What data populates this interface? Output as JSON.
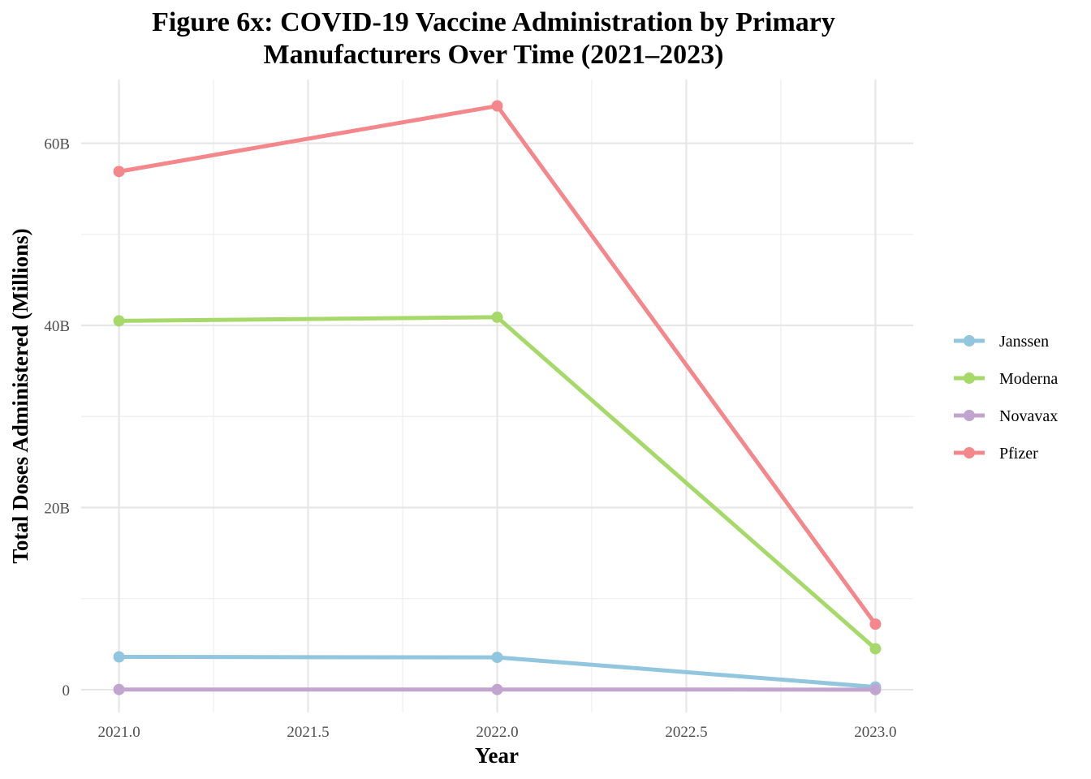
{
  "chart_data": {
    "type": "line",
    "title_lines": [
      "Figure 6x: COVID-19 Vaccine Administration by Primary",
      "Manufacturers Over Time (2021–2023)"
    ],
    "xlabel": "Year",
    "ylabel": "Total Doses Administered (Millions)",
    "x": [
      2021,
      2022,
      2023
    ],
    "x_ticks": [
      2021.0,
      2021.5,
      2022.0,
      2022.5,
      2023.0
    ],
    "x_tick_labels": [
      "2021.0",
      "2021.5",
      "2022.0",
      "2022.5",
      "2023.0"
    ],
    "y_ticks": [
      0,
      20,
      40,
      60
    ],
    "y_tick_labels": [
      "0",
      "20B",
      "40B",
      "60B"
    ],
    "y_unit_note": "values in billions",
    "xlim": [
      2020.9,
      2023.1
    ],
    "ylim": [
      -2.5,
      67
    ],
    "grid": true,
    "legend_position": "right",
    "series": [
      {
        "name": "Janssen",
        "color": "#92c5de",
        "values": [
          3.6,
          3.55,
          0.3
        ]
      },
      {
        "name": "Moderna",
        "color": "#a6d96a",
        "values": [
          40.5,
          40.9,
          4.5
        ]
      },
      {
        "name": "Novavax",
        "color": "#c2a5cf",
        "values": [
          0.02,
          0.02,
          0.01
        ]
      },
      {
        "name": "Pfizer",
        "color": "#f4878b",
        "values": [
          56.9,
          64.1,
          7.2
        ]
      }
    ]
  }
}
